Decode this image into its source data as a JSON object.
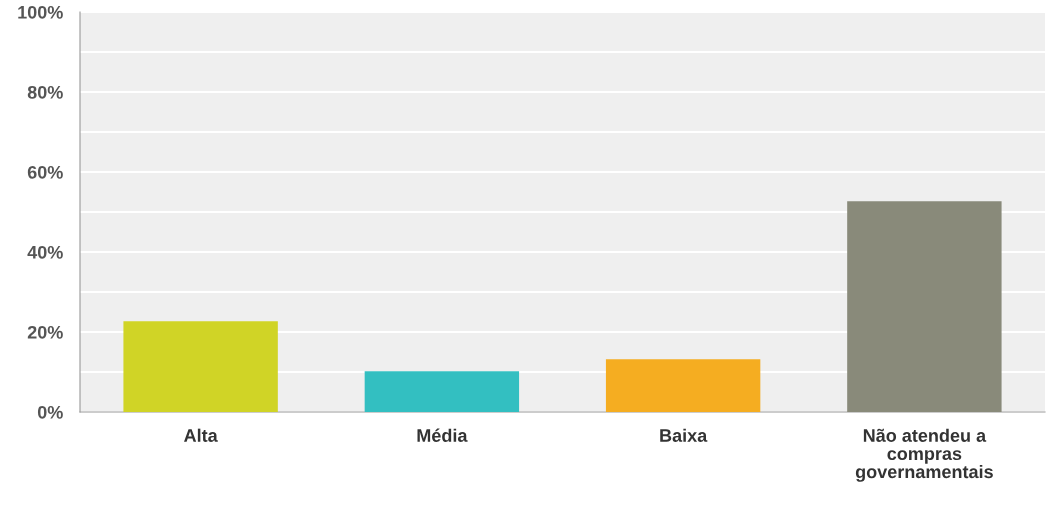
{
  "chart_data": {
    "type": "bar",
    "categories": [
      "Alta",
      "Média",
      "Baixa",
      "Não atendeu a\ncompras\ngovernamentais"
    ],
    "values": [
      22.7,
      10.2,
      13.2,
      52.7
    ],
    "colors": [
      "#d0d426",
      "#33bfc1",
      "#f5ad21",
      "#898a7a"
    ],
    "ylim": [
      0,
      100
    ],
    "yticks": [
      {
        "value": 0,
        "label": "0%"
      },
      {
        "value": 10,
        "label": null
      },
      {
        "value": 20,
        "label": "20%"
      },
      {
        "value": 30,
        "label": null
      },
      {
        "value": 40,
        "label": "40%"
      },
      {
        "value": 50,
        "label": null
      },
      {
        "value": 60,
        "label": "60%"
      },
      {
        "value": 70,
        "label": null
      },
      {
        "value": 80,
        "label": "80%"
      },
      {
        "value": 90,
        "label": null
      },
      {
        "value": 100,
        "label": "100%"
      }
    ],
    "grid": "y"
  }
}
